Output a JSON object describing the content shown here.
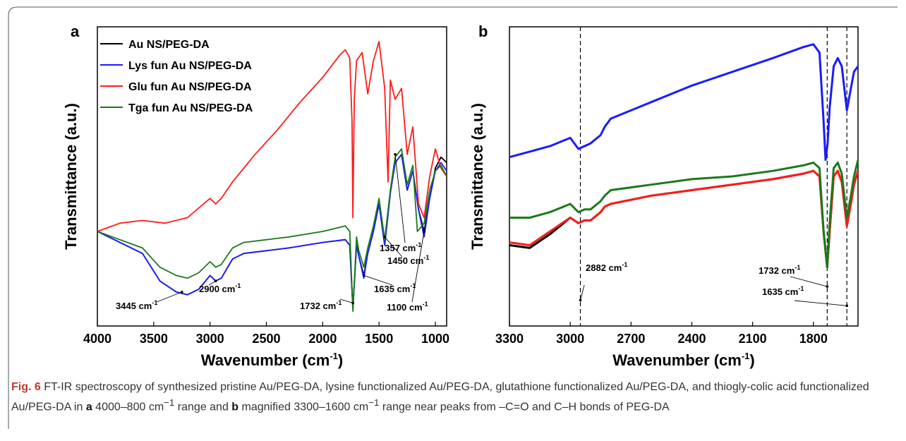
{
  "figure": {
    "caption_label": "Fig. 6",
    "caption_p1": " FT-IR spectroscopy of synthesized pristine Au/PEG-DA, lysine functionalized Au/PEG-DA, glutathione functionalized Au/PEG-DA, and thiogly-colic acid functionalized Au/PEG-DA in ",
    "caption_a": "a",
    "caption_p2": " 4000–800 cm",
    "caption_sup1": "−1",
    "caption_p3": " range and ",
    "caption_b": "b",
    "caption_p4": " magnified 3300–1600 cm",
    "caption_sup2": "−1",
    "caption_p5": " range near peaks from –C=O and C–H bonds of PEG-DA"
  },
  "colors": {
    "au": "#000000",
    "lys": "#1a1aff",
    "glu": "#ff1a1a",
    "tga": "#1a7a1a"
  },
  "chart_data": [
    {
      "type": "line",
      "panel_label": "a",
      "xlabel": "Wavenumber (cm",
      "xlabel_sup": "-1",
      "xlabel_end": ")",
      "ylabel": "Transmittance (a.u.)",
      "xlim": [
        4000,
        900
      ],
      "ylim": [
        0,
        100
      ],
      "x_reversed": true,
      "xticks": [
        4000,
        3500,
        3000,
        2500,
        2000,
        1500,
        1000
      ],
      "legend": [
        "Au NS/PEG-DA",
        "Lys fun Au NS/PEG-DA",
        "Glu fun Au NS/PEG-DA",
        "Tga fun Au NS/PEG-DA"
      ],
      "legend_position": "top-left",
      "series": [
        {
          "name": "Au NS/PEG-DA",
          "color_key": "au",
          "points": [
            [
              4000,
              30
            ],
            [
              3800,
              26
            ],
            [
              3600,
              22
            ],
            [
              3445,
              12
            ],
            [
              3300,
              8
            ],
            [
              3200,
              7
            ],
            [
              3100,
              9
            ],
            [
              3000,
              14
            ],
            [
              2950,
              12
            ],
            [
              2900,
              13
            ],
            [
              2800,
              20
            ],
            [
              2700,
              22
            ],
            [
              2500,
              23
            ],
            [
              2300,
              24
            ],
            [
              2000,
              26
            ],
            [
              1800,
              27
            ],
            [
              1760,
              25
            ],
            [
              1732,
              2
            ],
            [
              1700,
              25
            ],
            [
              1680,
              21
            ],
            [
              1635,
              14
            ],
            [
              1600,
              22
            ],
            [
              1550,
              30
            ],
            [
              1500,
              40
            ],
            [
              1450,
              25
            ],
            [
              1400,
              44
            ],
            [
              1357,
              55
            ],
            [
              1300,
              58
            ],
            [
              1250,
              45
            ],
            [
              1200,
              52
            ],
            [
              1150,
              38
            ],
            [
              1100,
              30
            ],
            [
              1050,
              42
            ],
            [
              1000,
              53
            ],
            [
              950,
              57
            ],
            [
              900,
              55
            ]
          ]
        },
        {
          "name": "Lys fun Au NS/PEG-DA",
          "color_key": "lys",
          "points": [
            [
              4000,
              30
            ],
            [
              3800,
              26
            ],
            [
              3600,
              22
            ],
            [
              3445,
              12
            ],
            [
              3300,
              8
            ],
            [
              3200,
              7
            ],
            [
              3100,
              9
            ],
            [
              3000,
              14
            ],
            [
              2950,
              12
            ],
            [
              2900,
              13
            ],
            [
              2800,
              20
            ],
            [
              2700,
              22
            ],
            [
              2500,
              23
            ],
            [
              2300,
              24
            ],
            [
              2000,
              26
            ],
            [
              1800,
              27
            ],
            [
              1760,
              25
            ],
            [
              1732,
              2
            ],
            [
              1700,
              25
            ],
            [
              1680,
              21
            ],
            [
              1635,
              13
            ],
            [
              1600,
              22
            ],
            [
              1550,
              30
            ],
            [
              1500,
              40
            ],
            [
              1450,
              25
            ],
            [
              1400,
              44
            ],
            [
              1357,
              55
            ],
            [
              1300,
              58
            ],
            [
              1250,
              45
            ],
            [
              1200,
              52
            ],
            [
              1150,
              38
            ],
            [
              1100,
              28
            ],
            [
              1050,
              42
            ],
            [
              1000,
              52
            ],
            [
              950,
              55
            ],
            [
              900,
              52
            ]
          ]
        },
        {
          "name": "Glu fun Au NS/PEG-DA",
          "color_key": "glu",
          "points": [
            [
              4000,
              30
            ],
            [
              3800,
              33
            ],
            [
              3600,
              34
            ],
            [
              3400,
              33
            ],
            [
              3200,
              35
            ],
            [
              3000,
              42
            ],
            [
              2950,
              40
            ],
            [
              2900,
              42
            ],
            [
              2800,
              48
            ],
            [
              2600,
              58
            ],
            [
              2400,
              67
            ],
            [
              2200,
              77
            ],
            [
              2000,
              86
            ],
            [
              1850,
              94
            ],
            [
              1800,
              96
            ],
            [
              1760,
              93
            ],
            [
              1740,
              70
            ],
            [
              1732,
              35
            ],
            [
              1720,
              78
            ],
            [
              1700,
              92
            ],
            [
              1650,
              95
            ],
            [
              1600,
              80
            ],
            [
              1550,
              92
            ],
            [
              1500,
              99
            ],
            [
              1450,
              82
            ],
            [
              1420,
              48
            ],
            [
              1400,
              85
            ],
            [
              1357,
              78
            ],
            [
              1300,
              82
            ],
            [
              1250,
              58
            ],
            [
              1200,
              68
            ],
            [
              1150,
              40
            ],
            [
              1100,
              35
            ],
            [
              1050,
              50
            ],
            [
              1000,
              60
            ],
            [
              950,
              53
            ],
            [
              900,
              50
            ]
          ]
        },
        {
          "name": "Tga fun Au NS/PEG-DA",
          "color_key": "tga",
          "points": [
            [
              4000,
              30
            ],
            [
              3800,
              27
            ],
            [
              3600,
              24
            ],
            [
              3445,
              17
            ],
            [
              3300,
              14
            ],
            [
              3200,
              13
            ],
            [
              3100,
              15
            ],
            [
              3000,
              19
            ],
            [
              2950,
              17
            ],
            [
              2900,
              18
            ],
            [
              2800,
              24
            ],
            [
              2700,
              26
            ],
            [
              2500,
              27
            ],
            [
              2300,
              28
            ],
            [
              2000,
              30
            ],
            [
              1800,
              32
            ],
            [
              1760,
              30
            ],
            [
              1732,
              1
            ],
            [
              1700,
              28
            ],
            [
              1680,
              23
            ],
            [
              1635,
              17
            ],
            [
              1600,
              24
            ],
            [
              1550,
              32
            ],
            [
              1500,
              42
            ],
            [
              1450,
              27
            ],
            [
              1400,
              45
            ],
            [
              1357,
              57
            ],
            [
              1300,
              60
            ],
            [
              1250,
              47
            ],
            [
              1200,
              54
            ],
            [
              1160,
              30
            ],
            [
              1100,
              33
            ],
            [
              1050,
              45
            ],
            [
              1000,
              52
            ],
            [
              950,
              54
            ],
            [
              900,
              50
            ]
          ]
        }
      ],
      "annotations": [
        "3445 cm",
        "2900 cm",
        "1732 cm",
        "1635 cm",
        "1450 cm",
        "1357 cm",
        "1100 cm"
      ]
    },
    {
      "type": "line",
      "panel_label": "b",
      "xlabel": "Wavenumber (cm",
      "xlabel_sup": "-1",
      "xlabel_end": ")",
      "ylabel": "Transmittance (a.u.)",
      "xlim": [
        3300,
        1580
      ],
      "ylim": [
        0,
        100
      ],
      "x_reversed": true,
      "xticks": [
        3300,
        3000,
        2700,
        2400,
        2100,
        1800
      ],
      "reference_lines": [
        2950,
        1732,
        1635
      ],
      "series": [
        {
          "name": "Lys fun Au NS/PEG-DA",
          "color_key": "lys",
          "points": [
            [
              3300,
              57
            ],
            [
              3200,
              59
            ],
            [
              3100,
              61
            ],
            [
              3000,
              64
            ],
            [
              2960,
              60
            ],
            [
              2930,
              61
            ],
            [
              2900,
              62
            ],
            [
              2850,
              65
            ],
            [
              2830,
              68
            ],
            [
              2800,
              71
            ],
            [
              2600,
              77
            ],
            [
              2400,
              83
            ],
            [
              2200,
              88
            ],
            [
              2000,
              93
            ],
            [
              1850,
              97
            ],
            [
              1800,
              98
            ],
            [
              1770,
              95
            ],
            [
              1750,
              70
            ],
            [
              1740,
              56
            ],
            [
              1730,
              62
            ],
            [
              1720,
              75
            ],
            [
              1700,
              90
            ],
            [
              1680,
              93
            ],
            [
              1660,
              90
            ],
            [
              1635,
              74
            ],
            [
              1615,
              82
            ],
            [
              1600,
              88
            ],
            [
              1580,
              90
            ]
          ]
        },
        {
          "name": "Au NS/PEG-DA",
          "color_key": "au",
          "points": [
            [
              3300,
              25
            ],
            [
              3200,
              24
            ],
            [
              3100,
              29
            ],
            [
              3000,
              35
            ],
            [
              2960,
              33
            ],
            [
              2930,
              34
            ],
            [
              2900,
              34
            ],
            [
              2850,
              37
            ],
            [
              2830,
              39
            ],
            [
              2800,
              40
            ],
            [
              2600,
              43
            ],
            [
              2400,
              45
            ],
            [
              2200,
              47
            ],
            [
              2000,
              49
            ],
            [
              1850,
              51
            ],
            [
              1800,
              52
            ],
            [
              1770,
              50
            ],
            [
              1750,
              30
            ],
            [
              1732,
              17
            ],
            [
              1720,
              30
            ],
            [
              1700,
              50
            ],
            [
              1680,
              52
            ],
            [
              1660,
              48
            ],
            [
              1635,
              32
            ],
            [
              1615,
              40
            ],
            [
              1600,
              47
            ],
            [
              1580,
              52
            ]
          ]
        },
        {
          "name": "Glu fun Au NS/PEG-DA",
          "color_key": "glu",
          "points": [
            [
              3300,
              26
            ],
            [
              3200,
              25
            ],
            [
              3100,
              30
            ],
            [
              3000,
              35
            ],
            [
              2960,
              33
            ],
            [
              2930,
              34
            ],
            [
              2900,
              34
            ],
            [
              2850,
              37
            ],
            [
              2830,
              39
            ],
            [
              2800,
              40
            ],
            [
              2600,
              43
            ],
            [
              2400,
              45
            ],
            [
              2200,
              47
            ],
            [
              2000,
              49
            ],
            [
              1850,
              51
            ],
            [
              1800,
              52
            ],
            [
              1770,
              50
            ],
            [
              1750,
              30
            ],
            [
              1732,
              17
            ],
            [
              1720,
              30
            ],
            [
              1700,
              50
            ],
            [
              1680,
              52
            ],
            [
              1660,
              48
            ],
            [
              1635,
              32
            ],
            [
              1615,
              40
            ],
            [
              1600,
              47
            ],
            [
              1580,
              52
            ]
          ]
        },
        {
          "name": "Tga fun Au NS/PEG-DA",
          "color_key": "tga",
          "points": [
            [
              3300,
              35
            ],
            [
              3200,
              35
            ],
            [
              3100,
              37
            ],
            [
              3000,
              40
            ],
            [
              2960,
              37
            ],
            [
              2930,
              38
            ],
            [
              2900,
              38
            ],
            [
              2850,
              41
            ],
            [
              2830,
              43
            ],
            [
              2800,
              45
            ],
            [
              2600,
              47
            ],
            [
              2400,
              49
            ],
            [
              2200,
              50
            ],
            [
              2000,
              52
            ],
            [
              1850,
              54
            ],
            [
              1800,
              55
            ],
            [
              1770,
              53
            ],
            [
              1750,
              30
            ],
            [
              1732,
              17
            ],
            [
              1720,
              33
            ],
            [
              1700,
              53
            ],
            [
              1680,
              55
            ],
            [
              1660,
              51
            ],
            [
              1635,
              35
            ],
            [
              1615,
              43
            ],
            [
              1600,
              50
            ],
            [
              1580,
              56
            ]
          ]
        }
      ],
      "annotations": [
        "2882 cm",
        "1732 cm",
        "1635 cm"
      ]
    }
  ]
}
